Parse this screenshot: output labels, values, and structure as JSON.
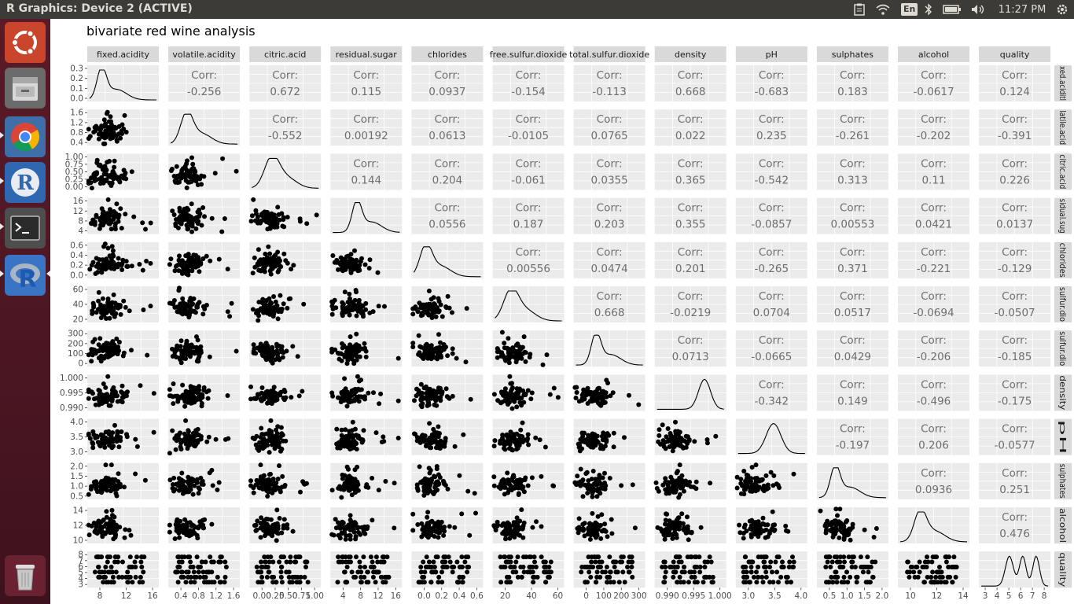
{
  "window": {
    "title": "R Graphics: Device 2 (ACTIVE)"
  },
  "tray": {
    "keyboard_layout": "En",
    "clock": "11:27 PM"
  },
  "launcher": {
    "items": [
      {
        "name": "ubuntu-dash-icon"
      },
      {
        "name": "files-icon"
      },
      {
        "name": "chrome-icon"
      },
      {
        "name": "r-icon"
      },
      {
        "name": "terminal-icon"
      },
      {
        "name": "rstudio-icon"
      },
      {
        "name": "trash-icon"
      }
    ]
  },
  "chart_data": {
    "type": "scatter-matrix",
    "title": "bivariate red wine analysis",
    "variables": [
      "fixed.acidity",
      "volatile.acidity",
      "citric.acid",
      "residual.sugar",
      "chlorides",
      "free.sulfur.dioxide",
      "total.sulfur.dioxide",
      "density",
      "pH",
      "sulphates",
      "alcohol",
      "quality"
    ],
    "row_strip_labels": [
      "xed.aciditl",
      "latile.acid",
      "citric.acid",
      "sidual.sug",
      "chlorides",
      "sulfur.dio",
      "sulfur.dio",
      "density",
      "pH",
      "sulphates",
      "alcohol",
      "quality"
    ],
    "corr_prefix": "Corr:",
    "correlations": [
      [
        "-0.256",
        "0.672",
        "0.115",
        "0.0937",
        "-0.154",
        "-0.113",
        "0.668",
        "-0.683",
        "0.183",
        "-0.0617",
        "0.124"
      ],
      [
        "-0.552",
        "0.00192",
        "0.0613",
        "-0.0105",
        "0.0765",
        "0.022",
        "0.235",
        "-0.261",
        "-0.202",
        "-0.391"
      ],
      [
        "0.144",
        "0.204",
        "-0.061",
        "0.0355",
        "0.365",
        "-0.542",
        "0.313",
        "0.11",
        "0.226"
      ],
      [
        "0.0556",
        "0.187",
        "0.203",
        "0.355",
        "-0.0857",
        "0.00553",
        "0.0421",
        "0.0137"
      ],
      [
        "0.00556",
        "0.0474",
        "0.201",
        "-0.265",
        "0.371",
        "-0.221",
        "-0.129"
      ],
      [
        "0.668",
        "-0.0219",
        "0.0704",
        "0.0517",
        "-0.0694",
        "-0.0507"
      ],
      [
        "0.0713",
        "-0.0665",
        "0.0429",
        "-0.206",
        "-0.185"
      ],
      [
        "-0.342",
        "0.149",
        "-0.496",
        "-0.175"
      ],
      [
        "-0.197",
        "0.206",
        "-0.0577"
      ],
      [
        "0.0936",
        "0.251"
      ],
      [
        "0.476"
      ]
    ],
    "x_axis_ticks": [
      [
        "8",
        "12",
        "16"
      ],
      [
        "0.4",
        "0.8",
        "1.2",
        "1.6"
      ],
      [
        "0.00",
        "0.25",
        "0.50",
        "0.75",
        "1.00"
      ],
      [
        "4",
        "8",
        "12",
        "16"
      ],
      [
        "0.0",
        "0.2",
        "0.4",
        "0.6"
      ],
      [
        "20",
        "40",
        "60"
      ],
      [
        "0",
        "100",
        "200",
        "300"
      ],
      [
        "0.990",
        "0.995",
        "1.000"
      ],
      [
        "3.0",
        "3.5",
        "4.0"
      ],
      [
        "0.5",
        "1.0",
        "1.5",
        "2.0"
      ],
      [
        "10",
        "12",
        "14"
      ],
      [
        "3",
        "4",
        "5",
        "6",
        "7",
        "8"
      ]
    ],
    "y_axis_ticks": [
      [
        "0.3",
        "0.2",
        "0.1",
        "0.0"
      ],
      [
        "1.6",
        "1.2",
        "0.8",
        "0.4"
      ],
      [
        "1.00",
        "0.75",
        "0.50",
        "0.25",
        "0.00"
      ],
      [
        "16",
        "12",
        "8",
        "4"
      ],
      [
        "0.6",
        "0.4",
        "0.2",
        "0.0"
      ],
      [
        "60",
        "40",
        "20"
      ],
      [
        "300",
        "200",
        "100",
        "0"
      ],
      [
        "1.000",
        "0.995",
        "0.990"
      ],
      [
        "4.0",
        "3.5",
        "3.0"
      ],
      [
        "2.0",
        "1.5",
        "1.0",
        "0.5"
      ],
      [
        "14",
        "12",
        "10"
      ],
      [
        "8",
        "7",
        "6",
        "5",
        "4",
        "3"
      ]
    ],
    "colors": {
      "strip_bg": "#d9d9d9",
      "panel_bg": "#ebebeb",
      "grid": "#ffffff",
      "points": "#000000",
      "corr_text": "#6e6e6e"
    }
  }
}
